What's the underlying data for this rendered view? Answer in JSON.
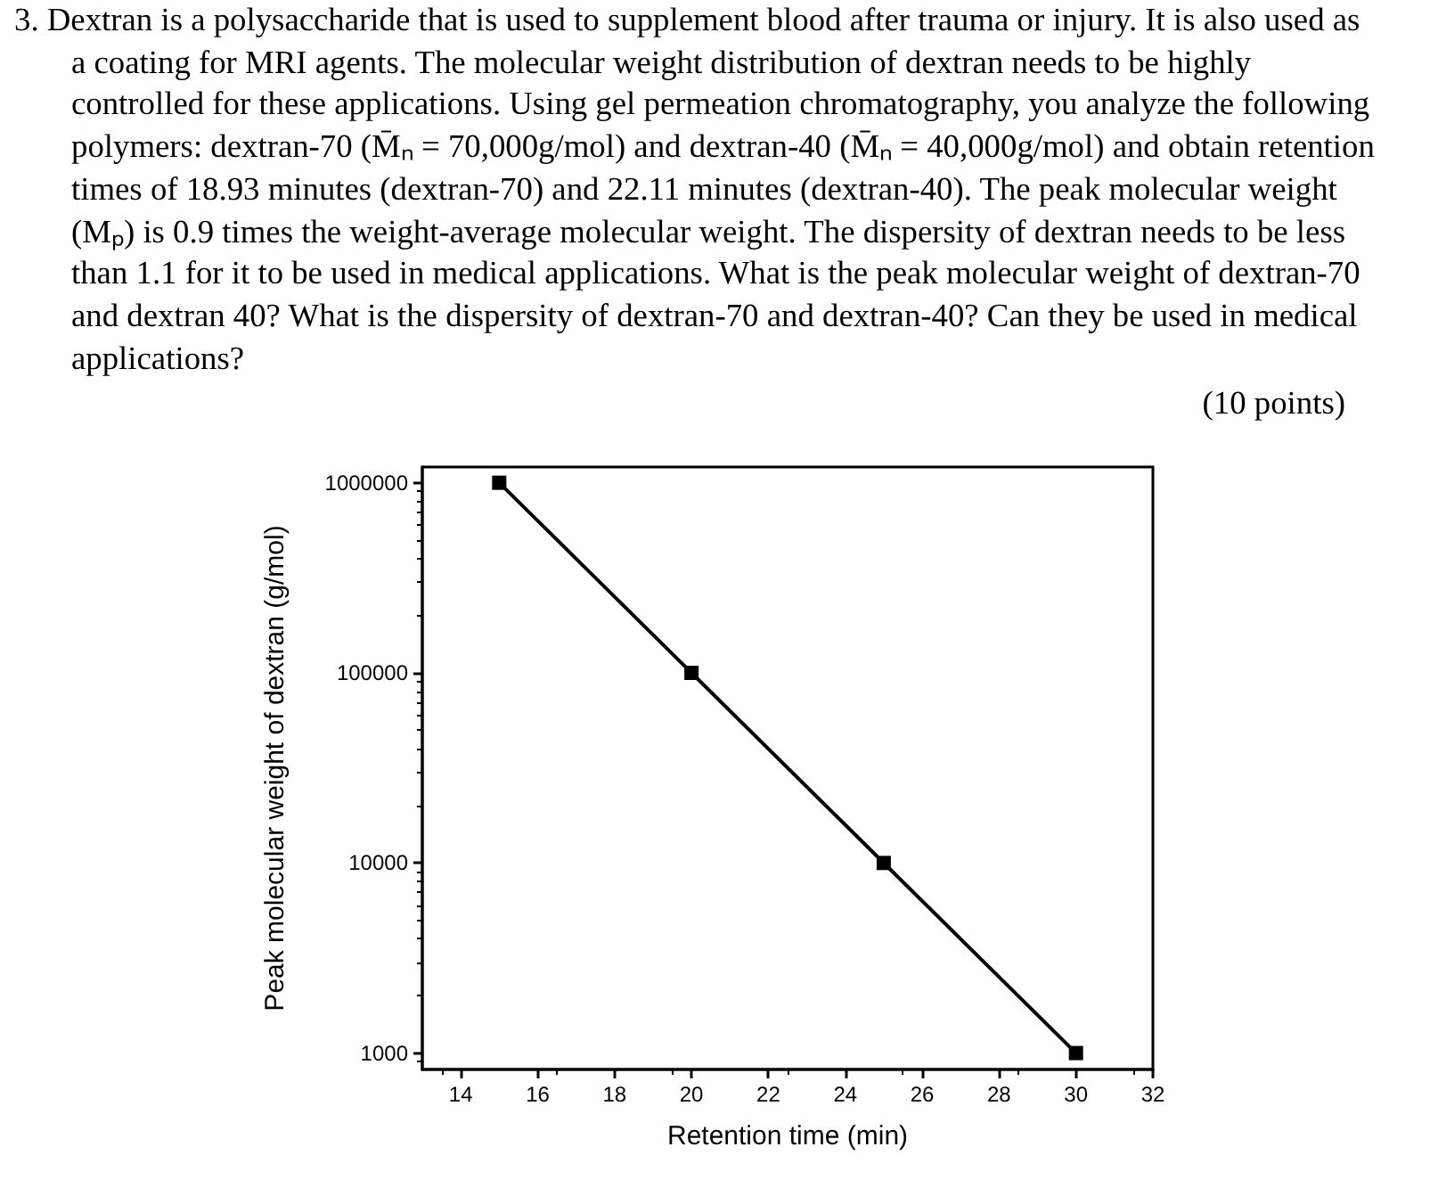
{
  "chart_data": {
    "type": "line",
    "annotations": [
      "3. Dextran is a polysaccharide that is used to supplement blood after trauma or injury. It is also used as a coating for MRI agents. The molecular weight distribution of dextran needs to be highly controlled for these applications. Using gel permeation chromatography, you analyze the following polymers: dextran-70 (M̄ₙ = 70,000g/mol) and dextran-40 (M̄ₙ = 40,000g/mol) and obtain retention times of 18.93 minutes (dextran-70) and 22.11 minutes (dextran-40). The peak molecular weight (Mₚ) is 0.9 times the weight-average molecular weight. The dispersity of dextran needs to be less than 1.1 for it to be used in medical applications. What is the peak molecular weight of dextran-70 and dextran 40? What is the dispersity of dextran-70 and dextran-40? Can they be used in medical applications?",
      "(10 points)"
    ],
    "xlabel": "Retention time (min)",
    "ylabel": "Peak molecular weight of dextran (g/mol)",
    "x": [
      15,
      20,
      25,
      30
    ],
    "series": [
      {
        "color": "#000000",
        "values": [
          1000000,
          100000,
          10000,
          1000
        ]
      }
    ],
    "xlim": [
      13,
      32
    ],
    "xticks": [
      14,
      16,
      18,
      20,
      22,
      24,
      26,
      28,
      30,
      32
    ],
    "ylim": [
      820,
      1210000
    ],
    "yticks": [
      1000,
      10000,
      100000,
      1000000
    ],
    "log": "y",
    "marker": "square",
    "line_style": "solid"
  }
}
